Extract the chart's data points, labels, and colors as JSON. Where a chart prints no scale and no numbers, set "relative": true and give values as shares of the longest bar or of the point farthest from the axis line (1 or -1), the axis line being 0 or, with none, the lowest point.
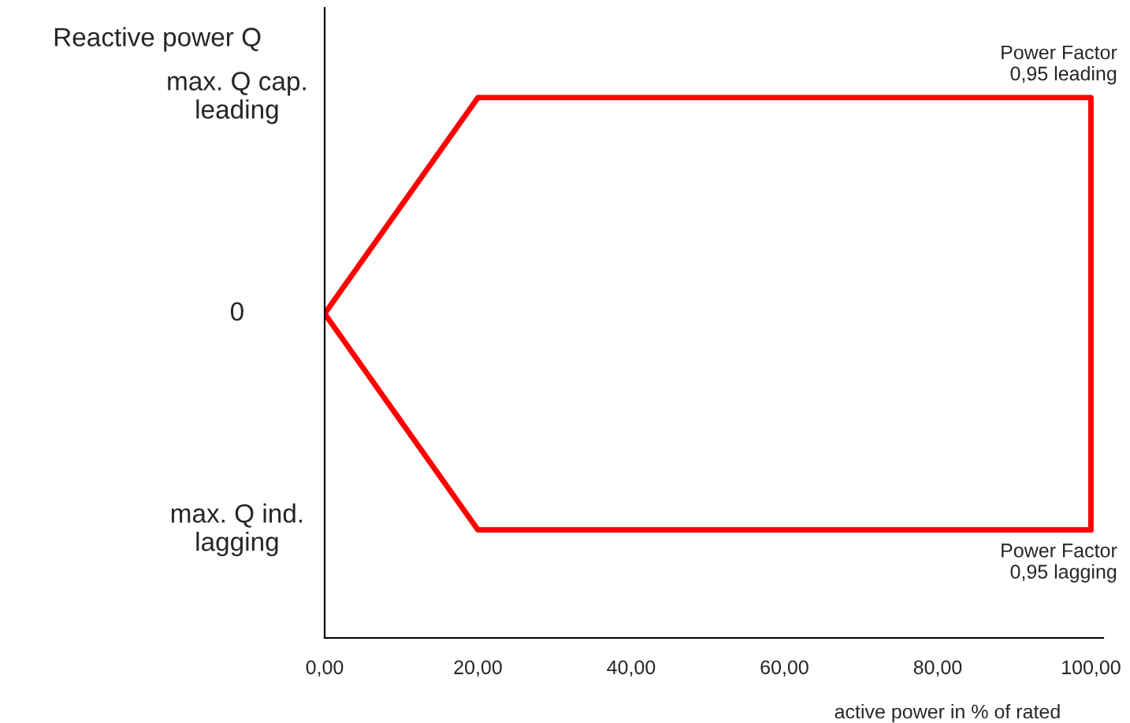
{
  "chart_data": {
    "type": "line",
    "ylabel": "Reactive power Q",
    "xlabel": "active power in % of rated",
    "relative": true,
    "series": [
      {
        "color": "#ff0000",
        "x": [
          0,
          20,
          100,
          100
        ],
        "values": [
          0.6,
          1,
          1,
          0.2
        ]
      },
      {
        "color": "#ff0000",
        "x": [
          0,
          20,
          100
        ],
        "values": [
          0.6,
          0.2,
          0.2
        ]
      }
    ],
    "xlim": [
      0,
      101.6
    ],
    "xticks": [
      {
        "value": 0,
        "label": "0,00"
      },
      {
        "value": 20,
        "label": "20,00"
      },
      {
        "value": 40,
        "label": "40,00"
      },
      {
        "value": 60,
        "label": "60,00"
      },
      {
        "value": 80,
        "label": "80,00"
      },
      {
        "value": 100,
        "label": "100,00"
      }
    ],
    "annotations": [
      "max. Q cap.\nleading",
      "0",
      "max. Q ind.\nlagging",
      {
        "text": "Power Factor\n0,95 leading",
        "x": 100,
        "y": 1
      },
      {
        "text": "Power Factor\n0,95 lagging",
        "x": 100,
        "y": 0.2
      }
    ],
    "grid": false,
    "legend": false,
    "marker": "none",
    "line_style": "solid"
  }
}
